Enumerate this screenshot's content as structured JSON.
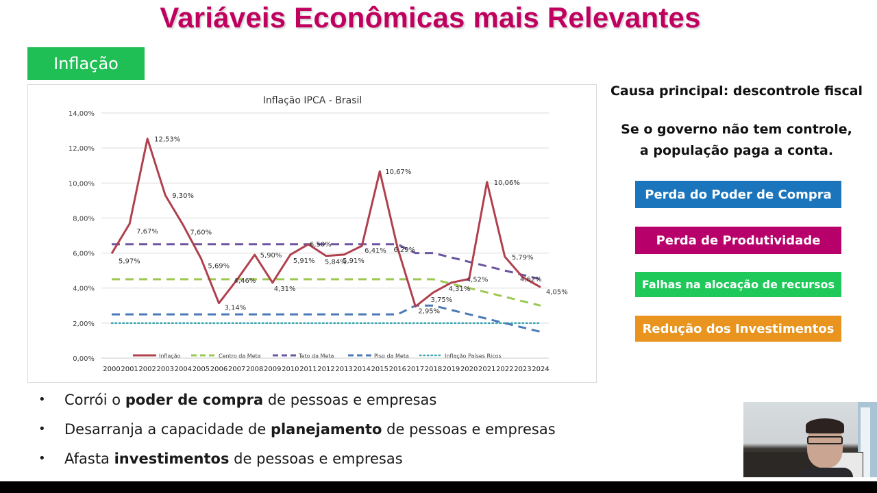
{
  "slide": {
    "title": "Variáveis Econômicas mais Relevantes",
    "section_tag": "Inflação",
    "colors": {
      "title": "#c0005f",
      "section_tag_bg": "#1fbf55"
    }
  },
  "side_panel": {
    "heading": "Causa principal: descontrole fiscal",
    "subheading_line1": "Se o governo não tem controle,",
    "subheading_line2": "a população paga a conta.",
    "effects": [
      {
        "label": "Perda do Poder de Compra",
        "color": "#1a75bc"
      },
      {
        "label": "Perda de Produtividade",
        "color": "#b8006b"
      },
      {
        "label": "Falhas na alocação de recursos",
        "color": "#1ec95a"
      },
      {
        "label": "Redução dos Investimentos",
        "color": "#e8941f"
      }
    ]
  },
  "bullets": [
    {
      "pre": "Corrói o ",
      "bold": "poder de compra",
      "post": " de pessoas e empresas"
    },
    {
      "pre": "Desarranja a capacidade de ",
      "bold": "planejamento",
      "post": " de pessoas e empresas"
    },
    {
      "pre": "Afasta ",
      "bold": "investimentos",
      "post": " de pessoas e empresas"
    }
  ],
  "bullet_glyph": "•",
  "chart_data": {
    "type": "line",
    "title": "Inflação IPCA - Brasil",
    "xlabel": "",
    "ylabel": "",
    "ylim": [
      0,
      14
    ],
    "y_ticks": [
      "0,00%",
      "2,00%",
      "4,00%",
      "6,00%",
      "8,00%",
      "10,00%",
      "12,00%",
      "14,00%"
    ],
    "grid": true,
    "legend_position": "bottom",
    "x": [
      "2000",
      "2001",
      "2002",
      "2003",
      "2004",
      "2005",
      "2006",
      "2007",
      "2008",
      "2009",
      "2010",
      "2011",
      "2012",
      "2013",
      "2014",
      "2015",
      "2016",
      "2017",
      "2018",
      "2019",
      "2020",
      "2021",
      "2022",
      "2023",
      "2024"
    ],
    "series": [
      {
        "name": "Inflação",
        "style": "solid",
        "color": "#b0404e",
        "values": [
          5.97,
          7.67,
          12.53,
          9.3,
          7.6,
          5.69,
          3.14,
          4.46,
          5.9,
          4.31,
          5.91,
          6.5,
          5.84,
          5.91,
          6.41,
          10.67,
          6.29,
          2.95,
          3.75,
          4.31,
          4.52,
          10.06,
          5.79,
          4.62,
          4.05
        ],
        "data_labels": [
          "5,97%",
          "7,67%",
          "12,53%",
          "9,30%",
          "7,60%",
          "5,69%",
          "3,14%",
          "4,46%",
          "5,90%",
          "4,31%",
          "5,91%",
          "6,50%",
          "5,84%",
          "5,91%",
          "6,41%",
          "10,67%",
          "6,29%",
          "2,95%",
          "3,75%",
          "4,31%",
          "4,52%",
          "10,06%",
          "5,79%",
          "4,62%",
          "4,05%"
        ]
      },
      {
        "name": "Centro da Meta",
        "style": "dashed",
        "color": "#9bc850",
        "values": [
          4.5,
          4.5,
          4.5,
          4.5,
          4.5,
          4.5,
          4.5,
          4.5,
          4.5,
          4.5,
          4.5,
          4.5,
          4.5,
          4.5,
          4.5,
          4.5,
          4.5,
          4.5,
          4.5,
          4.25,
          4.0,
          3.75,
          3.5,
          3.25,
          3.0
        ]
      },
      {
        "name": "Teto da Meta",
        "style": "dashed",
        "color": "#6a55a0",
        "values": [
          6.5,
          6.5,
          6.5,
          6.5,
          6.5,
          6.5,
          6.5,
          6.5,
          6.5,
          6.5,
          6.5,
          6.5,
          6.5,
          6.5,
          6.5,
          6.5,
          6.5,
          6.0,
          6.0,
          5.75,
          5.5,
          5.25,
          5.0,
          4.75,
          4.5
        ]
      },
      {
        "name": "Piso da Meta",
        "style": "dashed",
        "color": "#4a7ab5",
        "values": [
          2.5,
          2.5,
          2.5,
          2.5,
          2.5,
          2.5,
          2.5,
          2.5,
          2.5,
          2.5,
          2.5,
          2.5,
          2.5,
          2.5,
          2.5,
          2.5,
          2.5,
          3.0,
          3.0,
          2.75,
          2.5,
          2.25,
          2.0,
          1.75,
          1.5
        ]
      },
      {
        "name": "Inflação Países Ricos",
        "style": "dotted",
        "color": "#3aa6b0",
        "values": [
          2.0,
          2.0,
          2.0,
          2.0,
          2.0,
          2.0,
          2.0,
          2.0,
          2.0,
          2.0,
          2.0,
          2.0,
          2.0,
          2.0,
          2.0,
          2.0,
          2.0,
          2.0,
          2.0,
          2.0,
          2.0,
          2.0,
          2.0,
          2.0,
          2.0
        ]
      }
    ]
  }
}
